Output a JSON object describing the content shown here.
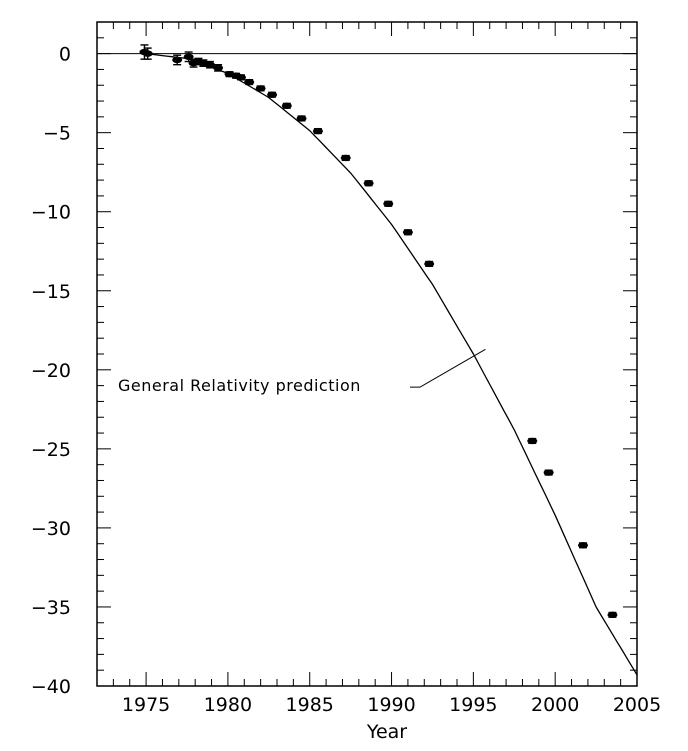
{
  "chart_data": {
    "type": "scatter",
    "title": "",
    "xlabel": "Year",
    "ylabel": "",
    "xlim": [
      1972,
      2005
    ],
    "ylim": [
      -40,
      2
    ],
    "grid": false,
    "x_ticks": [
      1975,
      1980,
      1985,
      1990,
      1995,
      2000,
      2005
    ],
    "y_ticks": [
      0,
      -5,
      -10,
      -15,
      -20,
      -25,
      -30,
      -35,
      -40
    ],
    "x_tick_labels": [
      "1975",
      "1980",
      "1985",
      "1990",
      "1995",
      "2000",
      "2005"
    ],
    "y_tick_labels": [
      "0",
      "−5",
      "−10",
      "−15",
      "−20",
      "−25",
      "−30",
      "−35",
      "−40"
    ],
    "series": [
      {
        "kind": "points",
        "x": [
          1974.9,
          1975.1,
          1976.9,
          1977.6,
          1977.9,
          1978.2,
          1978.5,
          1978.9,
          1979.4,
          1980.1,
          1980.5,
          1980.8,
          1981.3,
          1982.0,
          1982.7,
          1983.6,
          1984.5,
          1985.5,
          1987.2,
          1988.6,
          1989.8,
          1991.0,
          1992.3,
          1998.6,
          1999.6,
          2001.7,
          2003.5
        ],
        "y": [
          0.1,
          0.0,
          -0.4,
          -0.2,
          -0.6,
          -0.5,
          -0.6,
          -0.7,
          -0.9,
          -1.3,
          -1.4,
          -1.5,
          -1.8,
          -2.2,
          -2.6,
          -3.3,
          -4.1,
          -4.9,
          -6.6,
          -8.2,
          -9.5,
          -11.3,
          -13.3,
          -24.5,
          -26.5,
          -31.1,
          -35.5
        ],
        "yerr": [
          0.45,
          0.35,
          0.3,
          0.3,
          0.25,
          0.2,
          0.2,
          0.2,
          0.2,
          0.15,
          0.15,
          0.15,
          0.15,
          0.15,
          0.15,
          0.15,
          0.15,
          0.15,
          0.15,
          0.15,
          0.15,
          0.15,
          0.15,
          0.15,
          0.15,
          0.15,
          0.15
        ]
      },
      {
        "kind": "curve",
        "x": [
          1975,
          1977.5,
          1980,
          1982.5,
          1985,
          1987.5,
          1990,
          1992.5,
          1995,
          1997.5,
          2000,
          2002.5,
          2005
        ],
        "y": [
          0.0,
          -0.31,
          -1.25,
          -2.78,
          -4.87,
          -7.55,
          -10.8,
          -14.6,
          -19.0,
          -23.8,
          -29.2,
          -35.0,
          -39.3
        ]
      }
    ],
    "zero_line": 0,
    "annotations": [
      {
        "text": "General Relativity prediction",
        "points_to_x": 1995.8,
        "points_to_y": -19.0
      }
    ]
  }
}
